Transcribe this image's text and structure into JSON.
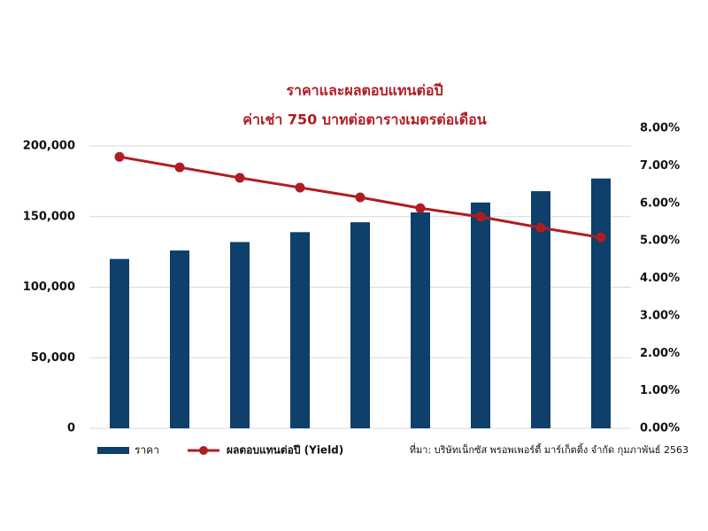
{
  "chart_data": {
    "type": "bar-line",
    "title": "ราคาและผลตอบแทนต่อปี",
    "subtitle": "ค่าเช่า 750 บาทต่อตารางเมตรต่อเดือน",
    "note": "ที่มา: บริษัทเน็กซัส พรอพเพอร์ตี้ มาร์เก็ตติ้ง จำกัด กุมภาพันธ์ 2563",
    "categories": [
      null,
      null,
      null,
      null,
      null,
      null,
      null,
      null,
      null
    ],
    "series": [
      {
        "name": "ราคา",
        "type": "bar",
        "color": "#0f3f6b",
        "values": [
          120000,
          126000,
          132000,
          139000,
          146000,
          153000,
          160000,
          168000,
          177000
        ]
      },
      {
        "name": "ผลตอบแทนต่อปี (Yield)",
        "type": "line",
        "axis": "y2",
        "color": "#b01c24",
        "values": [
          7.24,
          6.96,
          6.68,
          6.42,
          6.16,
          5.87,
          5.64,
          5.35,
          5.09
        ]
      }
    ],
    "ylim": [
      0,
      200000
    ],
    "yticks": [
      0,
      {
        "value": 50000,
        "label": "50,000"
      },
      {
        "value": 100000,
        "label": "100,000"
      },
      {
        "value": 150000,
        "label": "150,000"
      },
      {
        "value": 200000,
        "label": "200,000"
      }
    ],
    "y2lim": [
      0,
      8
    ],
    "y2ticks": [
      {
        "value": 0,
        "label": "0.00%"
      },
      {
        "value": 1,
        "label": "1.00%"
      },
      {
        "value": 2,
        "label": "2.00%"
      },
      {
        "value": 3,
        "label": "3.00%"
      },
      {
        "value": 4,
        "label": "4.00%"
      },
      {
        "value": 5,
        "label": "5.00%"
      },
      {
        "value": 6,
        "label": "6.00%"
      },
      {
        "value": 7,
        "label": "7.00%"
      },
      {
        "value": 8,
        "label": "8.00%"
      }
    ],
    "grid": true
  }
}
